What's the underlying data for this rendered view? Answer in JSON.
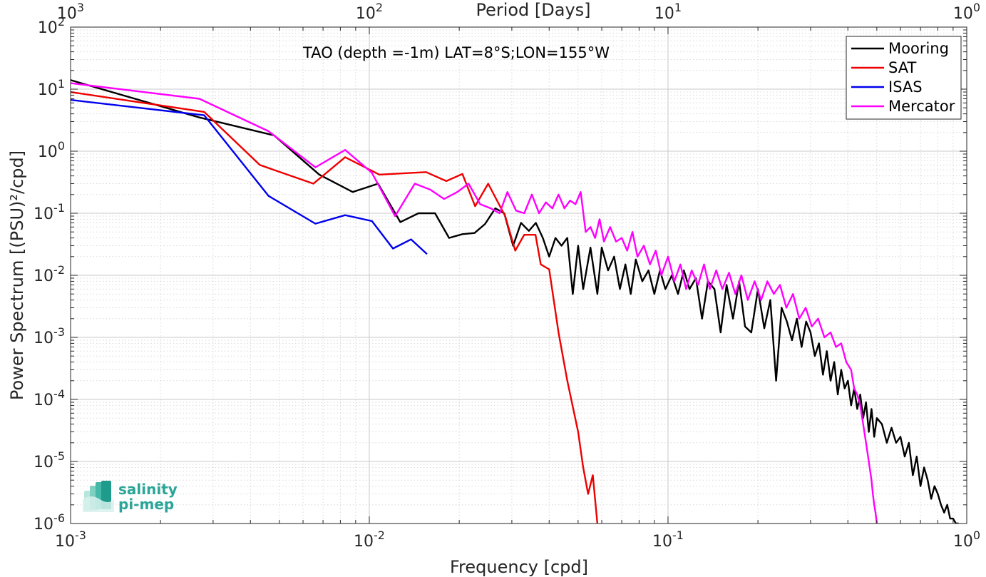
{
  "chart_data": {
    "type": "line",
    "title": "TAO (depth =-1m) LAT=8°S;LON=155°W",
    "xlabel": "Frequency [cpd]",
    "ylabel": "Power Spectrum [(PSU)²/cpd]",
    "x2label": "Period [Days]",
    "x_scale": "log",
    "y_scale": "log",
    "xlim": [
      0.001,
      1
    ],
    "ylim": [
      1e-06,
      100
    ],
    "grid": true,
    "legend_position": "top-right",
    "x_ticks": [
      {
        "value": 0.001,
        "base": "10",
        "exp": "-3"
      },
      {
        "value": 0.01,
        "base": "10",
        "exp": "-2"
      },
      {
        "value": 0.1,
        "base": "10",
        "exp": "-1"
      },
      {
        "value": 1,
        "base": "10",
        "exp": "0"
      }
    ],
    "x2_ticks": [
      {
        "value": 0.001,
        "base": "10",
        "exp": "3"
      },
      {
        "value": 0.01,
        "base": "10",
        "exp": "2"
      },
      {
        "value": 0.1,
        "base": "10",
        "exp": "1"
      },
      {
        "value": 1,
        "base": "10",
        "exp": "0"
      }
    ],
    "y_ticks": [
      {
        "value": 100,
        "base": "10",
        "exp": "2"
      },
      {
        "value": 10,
        "base": "10",
        "exp": "1"
      },
      {
        "value": 1,
        "base": "10",
        "exp": "0"
      },
      {
        "value": 0.1,
        "base": "10",
        "exp": "-1"
      },
      {
        "value": 0.01,
        "base": "10",
        "exp": "-2"
      },
      {
        "value": 0.001,
        "base": "10",
        "exp": "-3"
      },
      {
        "value": 0.0001,
        "base": "10",
        "exp": "-4"
      },
      {
        "value": 1e-05,
        "base": "10",
        "exp": "-5"
      },
      {
        "value": 1e-06,
        "base": "10",
        "exp": "-6"
      }
    ],
    "series": [
      {
        "name": "Mooring",
        "color": "#000000",
        "x": [
          0.001,
          0.0027,
          0.0048,
          0.0068,
          0.0088,
          0.0107,
          0.0127,
          0.0146,
          0.0166,
          0.0185,
          0.0205,
          0.0225,
          0.0244,
          0.0264,
          0.0283,
          0.0303,
          0.0322,
          0.0342,
          0.0361,
          0.0381,
          0.04,
          0.042,
          0.044,
          0.046,
          0.048,
          0.05,
          0.052,
          0.055,
          0.058,
          0.06,
          0.063,
          0.066,
          0.069,
          0.072,
          0.075,
          0.078,
          0.082,
          0.086,
          0.09,
          0.094,
          0.098,
          0.103,
          0.108,
          0.113,
          0.118,
          0.124,
          0.13,
          0.136,
          0.143,
          0.15,
          0.157,
          0.165,
          0.173,
          0.181,
          0.19,
          0.2,
          0.21,
          0.22,
          0.23,
          0.24,
          0.25,
          0.26,
          0.27,
          0.28,
          0.29,
          0.3,
          0.31,
          0.32,
          0.33,
          0.34,
          0.35,
          0.36,
          0.37,
          0.38,
          0.39,
          0.4,
          0.41,
          0.42,
          0.43,
          0.44,
          0.45,
          0.46,
          0.47,
          0.48,
          0.49,
          0.5,
          0.52,
          0.54,
          0.56,
          0.58,
          0.6,
          0.62,
          0.64,
          0.66,
          0.68,
          0.7,
          0.72,
          0.74,
          0.76,
          0.78,
          0.8,
          0.82,
          0.84,
          0.86,
          0.88,
          0.9,
          0.92,
          0.94
        ],
        "y": [
          14,
          3.5,
          1.8,
          0.42,
          0.22,
          0.3,
          0.072,
          0.1,
          0.1,
          0.04,
          0.046,
          0.048,
          0.067,
          0.12,
          0.1,
          0.03,
          0.07,
          0.052,
          0.07,
          0.04,
          0.02,
          0.04,
          0.03,
          0.04,
          0.005,
          0.03,
          0.006,
          0.028,
          0.005,
          0.028,
          0.012,
          0.02,
          0.006,
          0.015,
          0.005,
          0.018,
          0.008,
          0.012,
          0.005,
          0.012,
          0.006,
          0.01,
          0.005,
          0.012,
          0.006,
          0.009,
          0.002,
          0.008,
          0.006,
          0.0012,
          0.007,
          0.002,
          0.008,
          0.0015,
          0.0012,
          0.006,
          0.0014,
          0.004,
          0.0002,
          0.003,
          0.0018,
          0.0009,
          0.002,
          0.0007,
          0.0018,
          0.0012,
          0.0005,
          0.0008,
          0.00025,
          0.0006,
          0.0002,
          0.0004,
          0.00012,
          0.0003,
          0.00015,
          0.0002,
          8e-05,
          0.00015,
          7e-05,
          0.00012,
          5e-05,
          9e-05,
          3e-05,
          7e-05,
          2.5e-05,
          5e-05,
          4e-05,
          2e-05,
          3.5e-05,
          2e-05,
          2.5e-05,
          1.2e-05,
          2e-05,
          6e-06,
          1.2e-05,
          4e-06,
          8e-06,
          5e-06,
          2.5e-06,
          4e-06,
          3e-06,
          2e-06,
          1.5e-06,
          2e-06,
          1.2e-06,
          1.2e-06,
          1e-06,
          1e-06
        ]
      },
      {
        "name": "SAT",
        "color": "#ee0000",
        "x": [
          0.001,
          0.0028,
          0.0043,
          0.0065,
          0.0083,
          0.0108,
          0.0155,
          0.0181,
          0.0205,
          0.0226,
          0.025,
          0.0285,
          0.0308,
          0.033,
          0.036,
          0.0375,
          0.04,
          0.043,
          0.046,
          0.05,
          0.052,
          0.054,
          0.056,
          0.058
        ],
        "y": [
          9,
          4.3,
          0.6,
          0.3,
          0.8,
          0.42,
          0.46,
          0.33,
          0.43,
          0.13,
          0.3,
          0.09,
          0.025,
          0.045,
          0.045,
          0.015,
          0.0125,
          0.0012,
          0.0002,
          3e-05,
          8e-06,
          3e-06,
          6e-06,
          1e-06
        ]
      },
      {
        "name": "ISAS",
        "color": "#0000ee",
        "x": [
          0.001,
          0.0028,
          0.0046,
          0.0066,
          0.0083,
          0.0102,
          0.012,
          0.0138,
          0.0156
        ],
        "y": [
          6.7,
          3.8,
          0.19,
          0.068,
          0.093,
          0.075,
          0.027,
          0.038,
          0.022
        ]
      },
      {
        "name": "Mercator",
        "color": "#ff00ff",
        "x": [
          0.001,
          0.0027,
          0.0046,
          0.0066,
          0.0083,
          0.0102,
          0.0122,
          0.0142,
          0.016,
          0.0178,
          0.0197,
          0.0215,
          0.0235,
          0.0255,
          0.0273,
          0.029,
          0.031,
          0.033,
          0.035,
          0.037,
          0.039,
          0.041,
          0.043,
          0.045,
          0.047,
          0.049,
          0.051,
          0.053,
          0.055,
          0.057,
          0.059,
          0.061,
          0.064,
          0.067,
          0.07,
          0.073,
          0.076,
          0.079,
          0.083,
          0.087,
          0.091,
          0.095,
          0.1,
          0.105,
          0.11,
          0.115,
          0.12,
          0.126,
          0.132,
          0.138,
          0.145,
          0.152,
          0.16,
          0.168,
          0.176,
          0.185,
          0.195,
          0.205,
          0.215,
          0.226,
          0.237,
          0.249,
          0.262,
          0.275,
          0.289,
          0.303,
          0.318,
          0.334,
          0.35,
          0.365,
          0.38,
          0.395,
          0.41,
          0.42,
          0.43,
          0.44,
          0.45,
          0.46,
          0.47,
          0.48,
          0.485,
          0.49,
          0.495,
          0.5
        ],
        "y": [
          12.5,
          7,
          2.1,
          0.55,
          1.05,
          0.45,
          0.09,
          0.3,
          0.24,
          0.17,
          0.22,
          0.3,
          0.14,
          0.12,
          0.1,
          0.22,
          0.11,
          0.1,
          0.2,
          0.1,
          0.15,
          0.12,
          0.2,
          0.12,
          0.16,
          0.14,
          0.22,
          0.05,
          0.06,
          0.04,
          0.08,
          0.035,
          0.06,
          0.035,
          0.04,
          0.025,
          0.05,
          0.02,
          0.03,
          0.015,
          0.025,
          0.01,
          0.02,
          0.008,
          0.015,
          0.006,
          0.012,
          0.007,
          0.015,
          0.006,
          0.012,
          0.006,
          0.011,
          0.005,
          0.01,
          0.004,
          0.008,
          0.004,
          0.008,
          0.005,
          0.007,
          0.003,
          0.005,
          0.002,
          0.003,
          0.0015,
          0.002,
          0.001,
          0.0012,
          0.0007,
          0.0008,
          0.0004,
          0.0003,
          0.00015,
          0.00012,
          8e-05,
          4e-05,
          2e-05,
          1e-05,
          5e-06,
          3e-06,
          2e-06,
          1.5e-06,
          1e-06
        ]
      }
    ]
  },
  "logo": {
    "line1": "salinity",
    "line2": "pi-mep"
  }
}
